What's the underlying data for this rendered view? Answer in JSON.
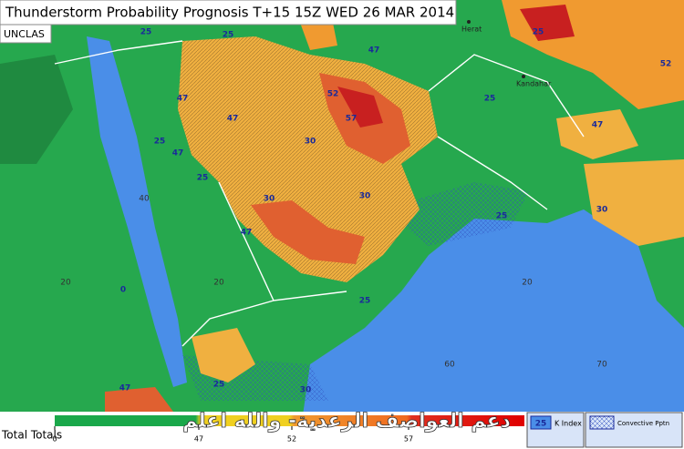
{
  "header": {
    "title": "Thunderstorm Probability Prognosis T+15 15Z WED 26 MAR 2014",
    "classification": "UNCLAS"
  },
  "places": [
    "Herat",
    "Kandahar"
  ],
  "grid_labels": [
    20,
    20,
    20,
    40,
    60,
    70
  ],
  "contour_labels": [
    25,
    25,
    47,
    47,
    25,
    30,
    47,
    52,
    57,
    30,
    47,
    25,
    30,
    25,
    47,
    25,
    30,
    47,
    52,
    25,
    0,
    30,
    25,
    47,
    25
  ],
  "legend": {
    "title": "Total Totals",
    "scale_ticks": [
      0,
      47,
      52,
      57
    ],
    "k_index_sample": 25,
    "k_index_label": "K Index",
    "convective_label": "Convective Pptn"
  },
  "watermark": "دعم العواصف الرعدية- والله اعلم"
}
